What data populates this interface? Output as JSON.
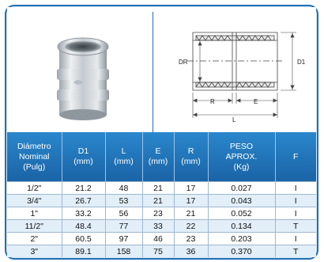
{
  "drawing": {
    "labels": {
      "dr": "DR",
      "d1": "D1",
      "r": "R",
      "e": "E",
      "l": "L"
    }
  },
  "table": {
    "headers": [
      [
        "Diámetro",
        "Nominal",
        "(Pulg)"
      ],
      [
        "D1",
        "(mm)"
      ],
      [
        "L",
        "(mm)"
      ],
      [
        "E",
        "(mm)"
      ],
      [
        "R",
        "(mm)"
      ],
      [
        "PESO",
        "APROX.",
        "(Kg)"
      ],
      [
        "F"
      ]
    ],
    "rows": [
      [
        "1/2\"",
        "21.2",
        "48",
        "21",
        "17",
        "0.027",
        "I"
      ],
      [
        "3/4\"",
        "26.7",
        "53",
        "21",
        "17",
        "0.043",
        "I"
      ],
      [
        "1\"",
        "33.2",
        "56",
        "23",
        "21",
        "0.052",
        "I"
      ],
      [
        "11/2\"",
        "48.4",
        "77",
        "33",
        "22",
        "0.134",
        "T"
      ],
      [
        "2\"",
        "60.5",
        "97",
        "46",
        "23",
        "0.203",
        "I"
      ],
      [
        "3\"",
        "89.1",
        "158",
        "75",
        "36",
        "0.370",
        "T"
      ]
    ]
  }
}
